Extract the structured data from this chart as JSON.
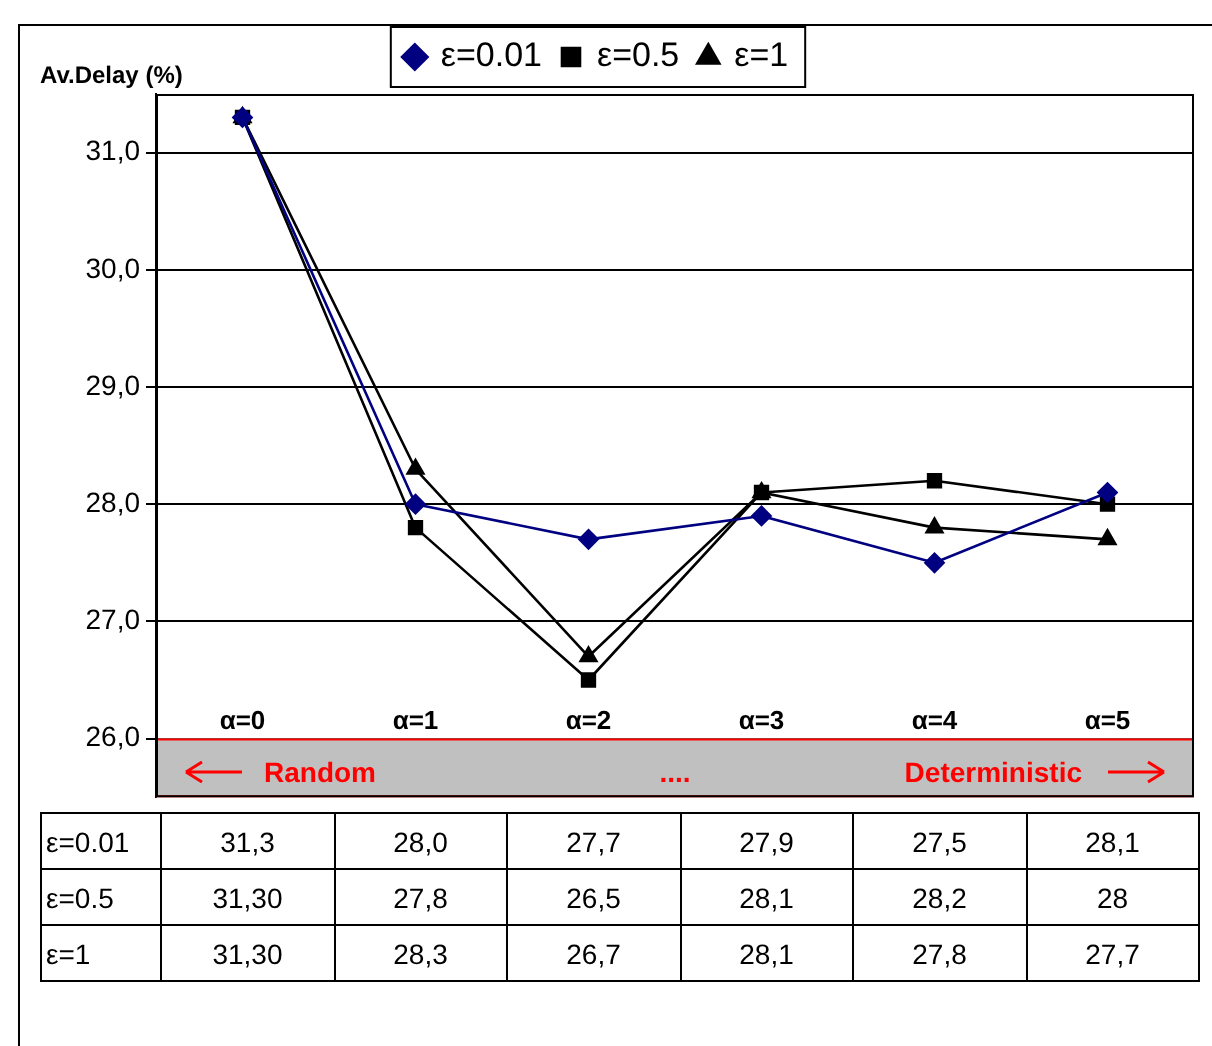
{
  "chart_data": {
    "type": "line",
    "ylabel": "Av.Delay (%)",
    "categories": [
      "α=0",
      "α=1",
      "α=2",
      "α=3",
      "α=4",
      "α=5"
    ],
    "series": [
      {
        "name": "ε=0.01",
        "color": "#000080",
        "marker": "diamond",
        "values": [
          31.3,
          28.0,
          27.7,
          27.9,
          27.5,
          28.1
        ],
        "value_labels": [
          "31,3",
          "28,0",
          "27,7",
          "27,9",
          "27,5",
          "28,1"
        ]
      },
      {
        "name": "ε=0.5",
        "color": "#000000",
        "marker": "square",
        "values": [
          31.3,
          27.8,
          26.5,
          28.1,
          28.2,
          28
        ],
        "value_labels": [
          "31,30",
          "27,8",
          "26,5",
          "28,1",
          "28,2",
          "28"
        ]
      },
      {
        "name": "ε=1",
        "color": "#000000",
        "marker": "triangle",
        "values": [
          31.3,
          28.3,
          26.7,
          28.1,
          27.8,
          27.7
        ],
        "value_labels": [
          "31,30",
          "28,3",
          "26,7",
          "28,1",
          "27,8",
          "27,7"
        ]
      }
    ],
    "ylim": [
      25.5,
      31.5
    ],
    "yticks": [
      {
        "value": 26,
        "label": "26,0"
      },
      {
        "value": 27,
        "label": "27,0"
      },
      {
        "value": 28,
        "label": "28,0"
      },
      {
        "value": 29,
        "label": "29,0"
      },
      {
        "value": 30,
        "label": "30,0"
      },
      {
        "value": 31,
        "label": "31,0"
      }
    ],
    "bands": [
      {
        "axis": "y",
        "from": 25.5,
        "to": 26,
        "color": "#c0c0c0"
      }
    ],
    "annotations": [
      "Random",
      "....",
      "Deterministic"
    ],
    "grid": "y",
    "legend": "top",
    "line_style": "solid"
  }
}
